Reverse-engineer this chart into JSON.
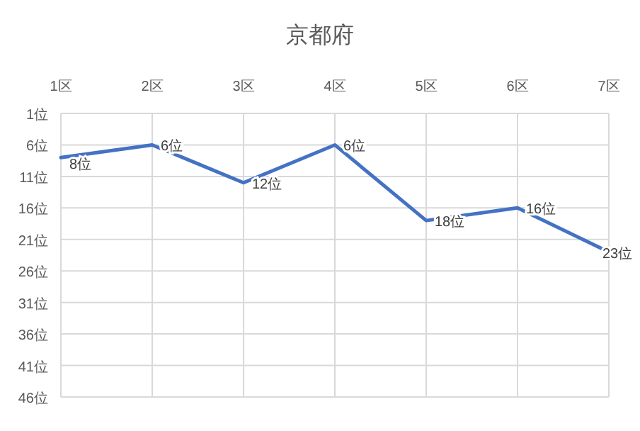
{
  "chart_data": {
    "type": "line",
    "title": "京都府",
    "categories": [
      "1区",
      "2区",
      "3区",
      "4区",
      "5区",
      "6区",
      "7区"
    ],
    "series": [
      {
        "color": "#4472c4",
        "values": [
          8,
          6,
          12,
          6,
          18,
          16,
          23
        ],
        "value_labels": [
          "8位",
          "6位",
          "12位",
          "6位",
          "18位",
          "16位",
          "23位"
        ]
      }
    ],
    "ylim": [
      46,
      1
    ],
    "yticks": [
      {
        "value": 1,
        "label": "1位"
      },
      {
        "value": 6,
        "label": "6位"
      },
      {
        "value": 11,
        "label": "11位"
      },
      {
        "value": 16,
        "label": "16位"
      },
      {
        "value": 21,
        "label": "21位"
      },
      {
        "value": 26,
        "label": "26位"
      },
      {
        "value": 31,
        "label": "31位"
      },
      {
        "value": 36,
        "label": "36位"
      },
      {
        "value": 41,
        "label": "41位"
      },
      {
        "value": 46,
        "label": "46位"
      }
    ],
    "grid": true,
    "marker": "none",
    "line_style": "solid"
  }
}
